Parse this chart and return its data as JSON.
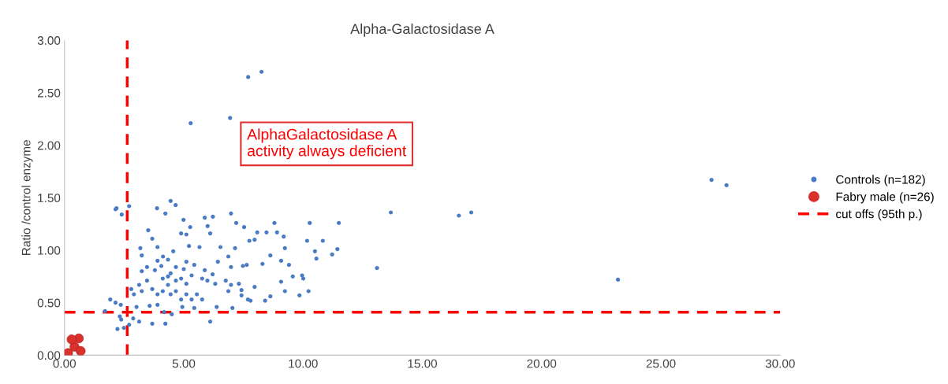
{
  "chart_data": {
    "type": "scatter",
    "title": "Alpha-Galactosidase A",
    "ylabel": "Ratio /control enzyme",
    "xlim": [
      0,
      30
    ],
    "ylim": [
      0,
      3
    ],
    "xticks": [
      {
        "value": 0,
        "label": "0.00"
      },
      {
        "value": 5,
        "label": "5.00"
      },
      {
        "value": 10,
        "label": "10.00"
      },
      {
        "value": 15,
        "label": "15.00"
      },
      {
        "value": 20,
        "label": "20.00"
      },
      {
        "value": 25,
        "label": "25.00"
      },
      {
        "value": 30,
        "label": "30.00"
      }
    ],
    "yticks": [
      {
        "value": 0,
        "label": "0.00"
      },
      {
        "value": 0.5,
        "label": "0.50"
      },
      {
        "value": 1,
        "label": "1.00"
      },
      {
        "value": 1.5,
        "label": "1.50"
      },
      {
        "value": 2,
        "label": "2.00"
      },
      {
        "value": 2.5,
        "label": "2.50"
      },
      {
        "value": 3,
        "label": "3.00"
      }
    ],
    "grid": false,
    "legend": "right",
    "marker": "circle",
    "series": [
      {
        "name": "Controls (n=182)",
        "color": "#4a7bc4",
        "x": [
          7.7,
          8.26,
          6.94,
          5.29,
          27.12,
          27.75,
          16.53,
          17.05,
          13.1,
          23.2,
          13.68,
          2.14,
          2.18,
          2.4,
          2.71,
          4.45,
          4.66,
          3.88,
          4.23,
          3.51,
          3.68,
          3.18,
          3.9,
          3.24,
          4.13,
          4.56,
          4.89,
          5.11,
          5.27,
          4.99,
          5.88,
          6.22,
          6.0,
          6.11,
          5.66,
          5.22,
          6.54,
          7.15,
          6.98,
          7.2,
          7.53,
          8.08,
          8.47,
          8.8,
          8.91,
          9.19,
          7.75,
          7.97,
          9.24,
          10.28,
          11.5,
          10.17,
          10.83,
          10.5,
          10.56,
          11.22,
          11.44,
          8.63,
          9.08,
          9.41,
          7.64,
          8.3,
          7.48,
          6.87,
          6.98,
          6.43,
          5.88,
          5.44,
          5.11,
          4.67,
          4.34,
          3.9,
          3.46,
          3.24,
          3.79,
          4.12,
          4.34,
          4.67,
          4.89,
          5.11,
          5.33,
          5.77,
          5.99,
          6.32,
          6.76,
          6.98,
          7.31,
          6.87,
          7.42,
          7.97,
          7.42,
          7.8,
          8.41,
          8.63,
          9.08,
          9.24,
          9.57,
          9.96,
          10.01,
          10.23,
          9.85,
          2.8,
          3.13,
          3.46,
          2.91,
          3.24,
          3.68,
          3.9,
          4.12,
          4.34,
          4.45,
          4.67,
          4.89,
          5.11,
          5.33,
          5.55,
          5.77,
          1.92,
          2.14,
          2.36,
          1.7,
          2.32,
          2.38,
          2.22,
          2.49,
          2.71,
          2.88,
          3.13,
          3.68,
          4.23,
          4.5,
          3.57,
          3.9,
          4.18,
          3.02,
          4.94,
          5.44,
          6.11,
          6.38,
          7.04,
          7.69,
          4.45,
          4.06,
          5.0,
          6.21
        ],
        "values": [
          2.65,
          2.7,
          2.26,
          2.21,
          1.67,
          1.62,
          1.33,
          1.36,
          0.83,
          0.72,
          1.36,
          1.39,
          1.4,
          1.34,
          1.42,
          1.47,
          1.43,
          1.4,
          1.35,
          1.19,
          1.11,
          1.02,
          1.03,
          0.95,
          0.94,
          0.99,
          1.16,
          1.15,
          1.22,
          1.29,
          1.31,
          1.32,
          1.23,
          1.16,
          1.03,
          1.04,
          1.03,
          1.02,
          1.35,
          1.26,
          1.22,
          1.17,
          1.17,
          1.26,
          1.17,
          1.13,
          1.09,
          1.1,
          1.02,
          1.26,
          1.26,
          1.09,
          1.09,
          0.99,
          0.92,
          0.96,
          1.01,
          0.95,
          0.9,
          0.86,
          0.86,
          0.87,
          0.85,
          0.94,
          0.84,
          0.89,
          0.81,
          0.86,
          0.89,
          0.84,
          0.91,
          0.9,
          0.84,
          0.8,
          0.81,
          0.73,
          0.75,
          0.71,
          0.73,
          0.68,
          0.76,
          0.73,
          0.71,
          0.68,
          0.71,
          0.67,
          0.68,
          0.61,
          0.62,
          0.65,
          0.57,
          0.52,
          0.52,
          0.56,
          0.7,
          0.61,
          0.75,
          0.76,
          0.73,
          0.61,
          0.57,
          0.63,
          0.67,
          0.71,
          0.58,
          0.61,
          0.63,
          0.58,
          0.61,
          0.67,
          0.58,
          0.61,
          0.53,
          0.58,
          0.53,
          0.58,
          0.53,
          0.53,
          0.5,
          0.48,
          0.42,
          0.37,
          0.34,
          0.25,
          0.26,
          0.29,
          0.35,
          0.32,
          0.3,
          0.3,
          0.39,
          0.47,
          0.48,
          0.41,
          0.46,
          0.46,
          0.45,
          0.32,
          0.46,
          0.45,
          0.53,
          0.78,
          0.85,
          0.82,
          0.77
        ]
      },
      {
        "name": "Fabry male (n=26)",
        "color": "#d9312b",
        "x": [
          0.15,
          0.42,
          0.6,
          0.68,
          0.3
        ],
        "values": [
          0.02,
          0.08,
          0.16,
          0.04,
          0.15
        ]
      }
    ],
    "ref_lines": [
      {
        "axis": "x",
        "value": 2.63,
        "color": "#ff0000",
        "line_style": "dashed"
      },
      {
        "axis": "y",
        "value": 0.41,
        "label": "cut offs (95th p.)",
        "color": "#ff0000",
        "line_style": "dashed"
      }
    ],
    "annotations": [
      "AlphaGalactosidase A\nactivity always deficient"
    ]
  }
}
